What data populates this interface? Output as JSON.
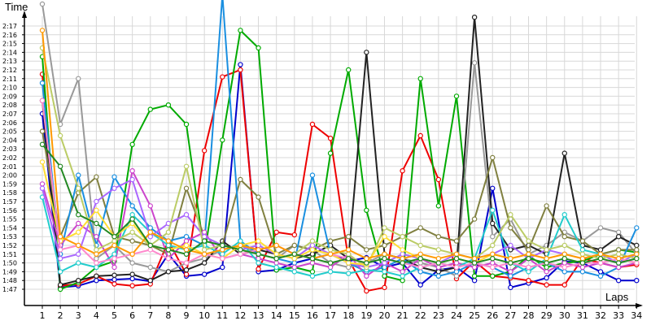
{
  "chart_data": {
    "type": "line",
    "ylabel": "Time",
    "xlabel": "Laps",
    "x": [
      1,
      2,
      3,
      4,
      5,
      6,
      7,
      8,
      9,
      10,
      11,
      12,
      13,
      14,
      15,
      16,
      17,
      18,
      19,
      20,
      21,
      22,
      23,
      24,
      25,
      26,
      27,
      28,
      29,
      30,
      31,
      32,
      33,
      34
    ],
    "x_tick_labels": [
      "1",
      "2",
      "3",
      "4",
      "5",
      "6",
      "7",
      "8",
      "9",
      "10",
      "11",
      "12",
      "13",
      "14",
      "15",
      "16",
      "17",
      "18",
      "19",
      "20",
      "21",
      "22",
      "23",
      "24",
      "25",
      "26",
      "27",
      "28",
      "29",
      "30",
      "31",
      "32",
      "33",
      "34"
    ],
    "y_tick_labels": [
      "1:47",
      "1:48",
      "1:49",
      "1:50",
      "1:51",
      "1:52",
      "1:53",
      "1:54",
      "1:55",
      "1:56",
      "1:57",
      "1:58",
      "1:59",
      "2:00",
      "2:01",
      "2:02",
      "2:03",
      "2:04",
      "2:05",
      "2:06",
      "2:07",
      "2:08",
      "2:09",
      "2:10",
      "2:11",
      "2:12",
      "2:13",
      "2:14",
      "2:15",
      "2:16",
      "2:17"
    ],
    "y_unit": "seconds",
    "ylim": [
      106,
      145
    ],
    "grid": true,
    "marker": "open-circle",
    "series": [
      {
        "color": "#0000cc",
        "values": [
          127,
          107.2,
          107.4,
          108.0,
          108.1,
          108.2,
          107.9,
          111.0,
          108.5,
          108.7,
          109.5,
          132.6,
          109.0,
          109.2,
          110.0,
          110.5,
          111.0,
          110.2,
          110.6,
          109.5,
          110.0,
          107.5,
          109.2,
          109.5,
          108.0,
          118.5,
          107.2,
          107.7,
          108.3,
          110.2,
          110.0,
          109.0,
          108.0,
          108.0
        ]
      },
      {
        "color": "#ee0000",
        "values": [
          131.5,
          107.4,
          107.6,
          108.5,
          107.6,
          107.4,
          107.6,
          112.5,
          108.7,
          122.8,
          131.2,
          132.0,
          109.3,
          113.5,
          113.2,
          125.8,
          124.2,
          110.4,
          106.8,
          107.2,
          120.5,
          124.5,
          119.5,
          108.2,
          110.2,
          108.5,
          108.3,
          108.0,
          107.5,
          107.5,
          110.5,
          110.0,
          109.5,
          109.8
        ]
      },
      {
        "color": "#00aa00",
        "values": [
          133.5,
          107.0,
          107.8,
          109.5,
          110.2,
          123.5,
          127.5,
          128.0,
          125.8,
          111.0,
          124.0,
          136.5,
          134.5,
          109.2,
          109.5,
          109.0,
          122.5,
          132.0,
          116.0,
          108.5,
          108.0,
          131.0,
          116.5,
          129.0,
          108.5,
          108.5,
          109.0,
          110.8,
          109.5,
          110.0,
          110.2,
          111.0,
          111.5,
          111.2
        ]
      },
      {
        "color": "#999999",
        "values": [
          139.5,
          125.8,
          131.0,
          110.5,
          112.0,
          110.0,
          109.5,
          109.0,
          110.0,
          110.5,
          111.5,
          112.0,
          111.0,
          110.5,
          112.0,
          111.5,
          110.0,
          109.5,
          110.0,
          111.0,
          110.5,
          110.0,
          109.5,
          108.5,
          132.8,
          113.0,
          115.0,
          111.0,
          112.0,
          113.5,
          112.5,
          114.0,
          113.5,
          111.0
        ]
      },
      {
        "color": "#222222",
        "values": [
          128.5,
          107.5,
          108.0,
          108.5,
          108.6,
          108.7,
          108.0,
          109.0,
          109.2,
          110.0,
          112.5,
          111.0,
          111.5,
          111.0,
          110.5,
          111.0,
          112.0,
          110.5,
          134.0,
          111.0,
          110.5,
          109.5,
          109.0,
          109.5,
          138.0,
          114.5,
          111.5,
          112.0,
          111.0,
          122.5,
          112.0,
          111.5,
          113.0,
          112.0
        ]
      },
      {
        "color": "#808040",
        "values": [
          125.0,
          113.0,
          118.0,
          119.8,
          113.0,
          112.5,
          112.0,
          111.0,
          118.5,
          113.0,
          112.0,
          119.5,
          117.5,
          111.0,
          112.0,
          111.5,
          112.5,
          113.0,
          111.5,
          112.0,
          113.0,
          114.0,
          113.0,
          112.5,
          115.0,
          122.0,
          114.0,
          111.5,
          116.5,
          113.0,
          112.5,
          111.0,
          111.5,
          111.5
        ]
      },
      {
        "color": "#1a8fe0",
        "values": [
          130.5,
          111.0,
          120.0,
          112.0,
          119.8,
          116.5,
          114.0,
          112.5,
          113.0,
          112.0,
          140.5,
          112.5,
          111.0,
          110.5,
          110.0,
          120.0,
          111.0,
          110.0,
          109.0,
          109.5,
          110.5,
          109.0,
          108.5,
          109.0,
          110.0,
          109.5,
          108.5,
          109.5,
          110.0,
          109.0,
          109.0,
          108.5,
          109.5,
          114.0
        ]
      },
      {
        "color": "#cc44cc",
        "values": [
          119.0,
          112.0,
          114.5,
          113.0,
          109.5,
          120.5,
          116.5,
          110.5,
          112.5,
          113.5,
          110.5,
          111.0,
          110.5,
          110.0,
          109.5,
          110.0,
          109.5,
          111.0,
          108.5,
          110.0,
          109.0,
          110.5,
          109.5,
          110.0,
          109.5,
          110.0,
          109.0,
          110.5,
          109.0,
          110.0,
          109.5,
          110.0,
          109.5,
          110.0
        ]
      },
      {
        "color": "#22cccc",
        "values": [
          117.5,
          109.0,
          110.0,
          109.5,
          111.0,
          115.5,
          113.5,
          112.0,
          111.5,
          112.0,
          111.0,
          112.5,
          110.0,
          109.5,
          109.0,
          108.5,
          109.0,
          108.8,
          109.2,
          109.0,
          108.5,
          109.5,
          110.0,
          109.5,
          110.5,
          116.0,
          110.0,
          109.0,
          110.5,
          115.5,
          111.5,
          111.0,
          110.0,
          110.5
        ]
      },
      {
        "color": "#aa66ff",
        "values": [
          118.5,
          110.5,
          111.0,
          117.0,
          118.5,
          119.5,
          113.0,
          114.5,
          115.5,
          113.0,
          112.0,
          111.5,
          112.0,
          111.0,
          110.5,
          112.0,
          111.0,
          110.0,
          109.5,
          110.0,
          111.0,
          110.5,
          110.0,
          111.0,
          110.5,
          111.0,
          112.0,
          110.5,
          111.5,
          111.0,
          110.5,
          111.0,
          110.0,
          111.0
        ]
      },
      {
        "color": "#bbcc66",
        "values": [
          134.5,
          124.5,
          118.5,
          111.5,
          112.5,
          113.5,
          112.0,
          113.5,
          121.0,
          111.5,
          112.0,
          111.5,
          111.0,
          110.5,
          111.0,
          112.5,
          111.5,
          111.0,
          109.5,
          114.0,
          113.0,
          112.0,
          111.5,
          111.0,
          110.5,
          112.0,
          115.5,
          112.5,
          111.5,
          112.0,
          111.0,
          110.5,
          111.0,
          110.5
        ]
      },
      {
        "color": "#ffdd33",
        "values": [
          121.5,
          112.5,
          113.5,
          116.0,
          113.0,
          114.5,
          112.0,
          111.5,
          112.0,
          111.0,
          110.5,
          112.0,
          112.5,
          111.0,
          110.5,
          111.5,
          111.0,
          110.0,
          109.8,
          113.0,
          111.5,
          110.5,
          110.0,
          110.5,
          110.0,
          111.0,
          110.5,
          111.0,
          110.5,
          111.0,
          110.5,
          111.0,
          110.5,
          110.0
        ]
      },
      {
        "color": "#ff88cc",
        "values": [
          128.5,
          111.5,
          112.0,
          110.0,
          110.5,
          111.0,
          111.5,
          110.5,
          110.0,
          111.0,
          110.5,
          111.0,
          111.5,
          112.0,
          111.0,
          110.5,
          111.0,
          110.5,
          110.0,
          110.5,
          110.0,
          109.5,
          110.0,
          109.5,
          110.0,
          109.5,
          110.0,
          109.5,
          110.0,
          109.5,
          110.0,
          110.0,
          110.5,
          110.0
        ]
      },
      {
        "color": "#ff9900",
        "values": [
          136.5,
          113.0,
          112.0,
          111.0,
          112.0,
          111.0,
          113.5,
          112.5,
          111.5,
          111.0,
          111.5,
          112.0,
          111.5,
          112.0,
          111.0,
          110.5,
          111.0,
          111.5,
          110.5,
          111.0,
          110.5,
          111.0,
          110.5,
          111.0,
          110.5,
          111.0,
          110.5,
          111.0,
          110.5,
          111.0,
          110.5,
          111.0,
          110.5,
          111.0
        ]
      },
      {
        "color": "#228822",
        "values": [
          123.5,
          121.0,
          115.5,
          114.5,
          113.0,
          115.0,
          112.0,
          111.5,
          111.0,
          112.5,
          112.0,
          111.5,
          111.0,
          110.5,
          111.0,
          110.5,
          110.0,
          110.5,
          110.0,
          110.5,
          110.0,
          110.5,
          110.0,
          110.5,
          110.0,
          110.5,
          110.0,
          110.5,
          110.0,
          110.5,
          110.0,
          110.5,
          110.0,
          110.5
        ]
      }
    ]
  }
}
